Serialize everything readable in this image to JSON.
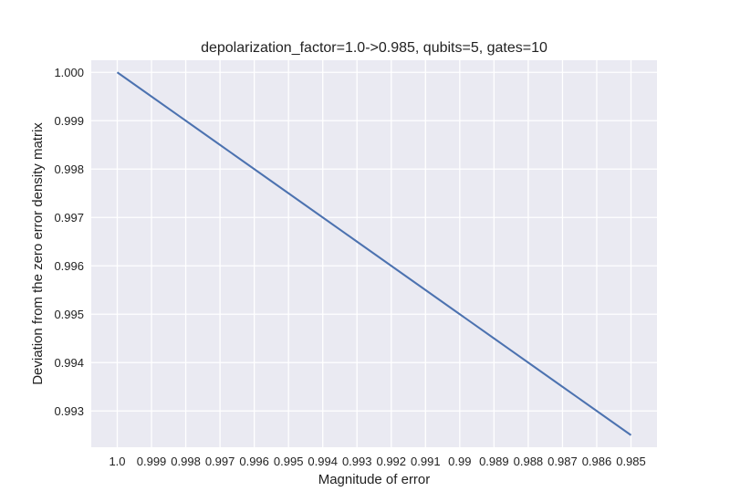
{
  "chart_data": {
    "type": "line",
    "title": "depolarization_factor=1.0->0.985, qubits=5, gates=10",
    "xlabel": "Magnitude of error",
    "ylabel": "Deviation from the zero error density matrix",
    "x_tick_labels": [
      "1.0",
      "0.999",
      "0.998",
      "0.997",
      "0.996",
      "0.995",
      "0.994",
      "0.993",
      "0.992",
      "0.991",
      "0.99",
      "0.989",
      "0.988",
      "0.987",
      "0.986",
      "0.985"
    ],
    "y_tick_labels": [
      "0.993",
      "0.994",
      "0.995",
      "0.996",
      "0.997",
      "0.998",
      "0.999",
      "1.000"
    ],
    "y_ticks": [
      0.993,
      0.994,
      0.995,
      0.996,
      0.997,
      0.998,
      0.999,
      1.0
    ],
    "ylim": [
      0.99225,
      1.00025
    ],
    "series": [
      {
        "x": [
          1.0,
          0.999,
          0.998,
          0.997,
          0.996,
          0.995,
          0.994,
          0.993,
          0.992,
          0.991,
          0.99,
          0.989,
          0.988,
          0.987,
          0.986,
          0.985
        ],
        "values": [
          1.0,
          0.9995,
          0.999,
          0.9985,
          0.998,
          0.9975,
          0.997,
          0.9965,
          0.996,
          0.9955,
          0.995,
          0.9945,
          0.994,
          0.9935,
          0.993,
          0.9925
        ],
        "color": "#4c72b0"
      }
    ],
    "grid": true,
    "plot_background": "#eaeaf2",
    "grid_color": "#ffffff"
  }
}
